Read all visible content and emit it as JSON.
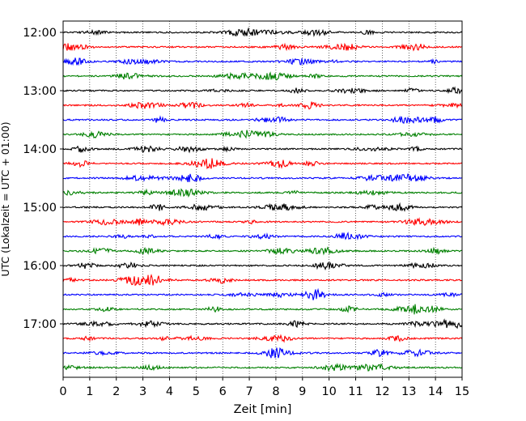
{
  "chart_data": {
    "type": "line",
    "title": "",
    "xlabel": "Zeit  [min]",
    "ylabel": "UTC (Lokalzeit = UTC + 01:00)",
    "xlim": [
      0,
      15
    ],
    "x_ticks": [
      "0",
      "1",
      "2",
      "3",
      "4",
      "5",
      "6",
      "7",
      "8",
      "9",
      "10",
      "11",
      "12",
      "13",
      "14",
      "15"
    ],
    "y_ticks": [
      "12:00",
      "13:00",
      "14:00",
      "15:00",
      "16:00",
      "17:00"
    ],
    "grid": "vertical dotted",
    "legend": "none",
    "trace_interval_min": 15,
    "colors": [
      "#000000",
      "#ff0000",
      "#0000ff",
      "#008000"
    ],
    "series": [
      {
        "start": "12:00",
        "color": "#000000"
      },
      {
        "start": "12:15",
        "color": "#ff0000"
      },
      {
        "start": "12:30",
        "color": "#0000ff"
      },
      {
        "start": "12:45",
        "color": "#008000"
      },
      {
        "start": "13:00",
        "color": "#000000"
      },
      {
        "start": "13:15",
        "color": "#ff0000"
      },
      {
        "start": "13:30",
        "color": "#0000ff"
      },
      {
        "start": "13:45",
        "color": "#008000"
      },
      {
        "start": "14:00",
        "color": "#000000"
      },
      {
        "start": "14:15",
        "color": "#ff0000"
      },
      {
        "start": "14:30",
        "color": "#0000ff"
      },
      {
        "start": "14:45",
        "color": "#008000"
      },
      {
        "start": "15:00",
        "color": "#000000"
      },
      {
        "start": "15:15",
        "color": "#ff0000"
      },
      {
        "start": "15:30",
        "color": "#0000ff"
      },
      {
        "start": "15:45",
        "color": "#008000"
      },
      {
        "start": "16:00",
        "color": "#000000"
      },
      {
        "start": "16:15",
        "color": "#ff0000"
      },
      {
        "start": "16:30",
        "color": "#0000ff"
      },
      {
        "start": "16:45",
        "color": "#008000"
      },
      {
        "start": "17:00",
        "color": "#000000"
      },
      {
        "start": "17:15",
        "color": "#ff0000"
      },
      {
        "start": "17:30",
        "color": "#0000ff"
      },
      {
        "start": "17:45",
        "color": "#008000"
      }
    ]
  }
}
